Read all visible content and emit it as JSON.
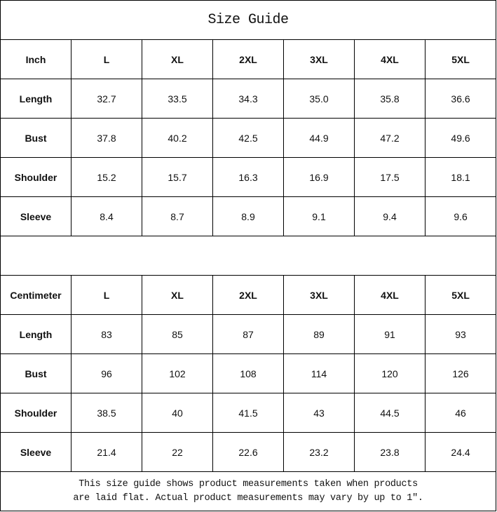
{
  "title": "Size Guide",
  "inch": {
    "header": [
      "Inch",
      "L",
      "XL",
      "2XL",
      "3XL",
      "4XL",
      "5XL"
    ],
    "rows": [
      [
        "Length",
        "32.7",
        "33.5",
        "34.3",
        "35.0",
        "35.8",
        "36.6"
      ],
      [
        "Bust",
        "37.8",
        "40.2",
        "42.5",
        "44.9",
        "47.2",
        "49.6"
      ],
      [
        "Shoulder",
        "15.2",
        "15.7",
        "16.3",
        "16.9",
        "17.5",
        "18.1"
      ],
      [
        "Sleeve",
        "8.4",
        "8.7",
        "8.9",
        "9.1",
        "9.4",
        "9.6"
      ]
    ]
  },
  "cm": {
    "header": [
      "Centimeter",
      "L",
      "XL",
      "2XL",
      "3XL",
      "4XL",
      "5XL"
    ],
    "rows": [
      [
        "Length",
        "83",
        "85",
        "87",
        "89",
        "91",
        "93"
      ],
      [
        "Bust",
        "96",
        "102",
        "108",
        "114",
        "120",
        "126"
      ],
      [
        "Shoulder",
        "38.5",
        "40",
        "41.5",
        "43",
        "44.5",
        "46"
      ],
      [
        "Sleeve",
        "21.4",
        "22",
        "22.6",
        "23.2",
        "23.8",
        "24.4"
      ]
    ]
  },
  "note": {
    "line1": "This size guide shows product measurements taken when products",
    "line2": "are laid flat. Actual product measurements may vary by up to 1″."
  }
}
